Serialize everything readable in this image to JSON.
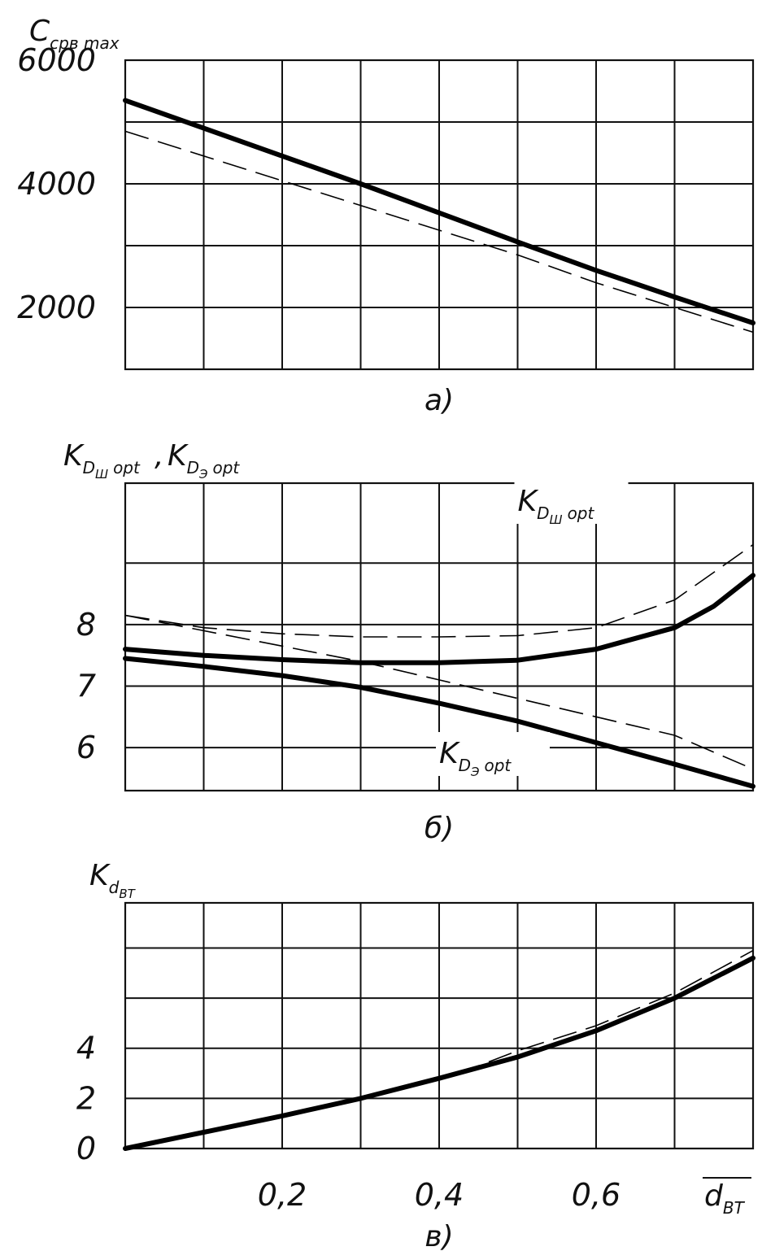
{
  "chart_data": [
    {
      "id": "a",
      "type": "line",
      "caption": "а)",
      "ylabel": {
        "base": "C",
        "sub": "срв max"
      },
      "xlim": [
        0,
        0.8
      ],
      "ylim": [
        1000,
        6000
      ],
      "yticks": [
        {
          "value": 6000,
          "label": "6000"
        },
        {
          "value": 4000,
          "label": "4000"
        },
        {
          "value": 2000,
          "label": "2000"
        }
      ],
      "grid_x": [
        0,
        0.1,
        0.2,
        0.3,
        0.4,
        0.5,
        0.6,
        0.7,
        0.8
      ],
      "grid_y": [
        1000,
        2000,
        3000,
        4000,
        5000,
        6000
      ],
      "series": [
        {
          "style": "solid",
          "x": [
            0,
            0.1,
            0.2,
            0.3,
            0.4,
            0.5,
            0.6,
            0.7,
            0.8
          ],
          "y": [
            5350,
            4900,
            4450,
            4000,
            3530,
            3060,
            2600,
            2170,
            1750
          ]
        },
        {
          "style": "dashed",
          "x": [
            0,
            0.1,
            0.2,
            0.3,
            0.4,
            0.5,
            0.6,
            0.7,
            0.8
          ],
          "y": [
            4850,
            4450,
            4050,
            3650,
            3250,
            2850,
            2400,
            2000,
            1600
          ]
        }
      ]
    },
    {
      "id": "b",
      "type": "line",
      "caption": "б)",
      "ylabel": [
        {
          "base": "K",
          "sub": "D",
          "subsub": "Ш",
          "tail": "opt"
        },
        {
          "base": "K",
          "sub": "D",
          "subsub": "Э",
          "tail": "opt"
        }
      ],
      "xlim": [
        0,
        0.8
      ],
      "ylim": [
        5.3,
        10.3
      ],
      "yticks": [
        {
          "value": 8,
          "label": "8"
        },
        {
          "value": 7,
          "label": "7"
        },
        {
          "value": 6,
          "label": "6"
        }
      ],
      "grid_x": [
        0,
        0.1,
        0.2,
        0.3,
        0.4,
        0.5,
        0.6,
        0.7,
        0.8
      ],
      "grid_y": [
        5.3,
        6.0,
        7.0,
        8.0,
        9.0,
        10.3
      ],
      "annotations": [
        {
          "base": "K",
          "sub": "D",
          "subsub": "Ш",
          "tail": "opt",
          "at_x": 0.5,
          "at_y": 9.85
        },
        {
          "base": "K",
          "sub": "D",
          "subsub": "Э",
          "tail": "opt",
          "at_x": 0.4,
          "at_y": 5.75
        }
      ],
      "series": [
        {
          "style": "solid",
          "x": [
            0,
            0.1,
            0.2,
            0.3,
            0.4,
            0.5,
            0.6,
            0.7,
            0.75,
            0.8
          ],
          "y": [
            7.6,
            7.5,
            7.43,
            7.38,
            7.38,
            7.42,
            7.6,
            7.95,
            8.3,
            8.8
          ]
        },
        {
          "style": "solid",
          "x": [
            0,
            0.1,
            0.2,
            0.3,
            0.4,
            0.5,
            0.6,
            0.7,
            0.8
          ],
          "y": [
            7.45,
            7.32,
            7.17,
            6.98,
            6.72,
            6.43,
            6.08,
            5.73,
            5.37
          ]
        },
        {
          "style": "dashed",
          "x": [
            0,
            0.1,
            0.2,
            0.3,
            0.4,
            0.5,
            0.6,
            0.7,
            0.75,
            0.8
          ],
          "y": [
            8.15,
            7.95,
            7.85,
            7.8,
            7.8,
            7.82,
            7.95,
            8.4,
            8.85,
            9.3
          ]
        },
        {
          "style": "dashed",
          "x": [
            0,
            0.1,
            0.2,
            0.3,
            0.4,
            0.5,
            0.6,
            0.7,
            0.8
          ],
          "y": [
            8.15,
            7.9,
            7.65,
            7.4,
            7.1,
            6.8,
            6.5,
            6.2,
            5.65
          ]
        }
      ]
    },
    {
      "id": "c",
      "type": "line",
      "caption": "в)",
      "ylabel": {
        "base": "K",
        "sub": "d",
        "subsub": "ВТ"
      },
      "xlabel": {
        "base": "d",
        "sub": "ВТ",
        "overline": true
      },
      "xlim": [
        0,
        0.8
      ],
      "ylim": [
        0,
        9.8
      ],
      "xticks": [
        {
          "value": 0.2,
          "label": "0,2"
        },
        {
          "value": 0.4,
          "label": "0,4"
        },
        {
          "value": 0.6,
          "label": "0,6"
        }
      ],
      "yticks": [
        {
          "value": 4,
          "label": "4"
        },
        {
          "value": 2,
          "label": "2"
        },
        {
          "value": 0,
          "label": "0"
        }
      ],
      "grid_x": [
        0,
        0.1,
        0.2,
        0.3,
        0.4,
        0.5,
        0.6,
        0.7,
        0.8
      ],
      "grid_y": [
        0,
        2,
        4,
        6,
        8,
        9.8
      ],
      "series": [
        {
          "style": "solid",
          "x": [
            0,
            0.1,
            0.2,
            0.3,
            0.4,
            0.5,
            0.6,
            0.7,
            0.8
          ],
          "y": [
            0,
            0.65,
            1.3,
            2.0,
            2.8,
            3.65,
            4.7,
            6.0,
            7.6
          ]
        },
        {
          "style": "dashed",
          "x": [
            0.38,
            0.45,
            0.5,
            0.55,
            0.6,
            0.7,
            0.8
          ],
          "y": [
            2.65,
            3.3,
            3.9,
            4.4,
            4.9,
            6.2,
            7.9
          ]
        }
      ]
    }
  ]
}
